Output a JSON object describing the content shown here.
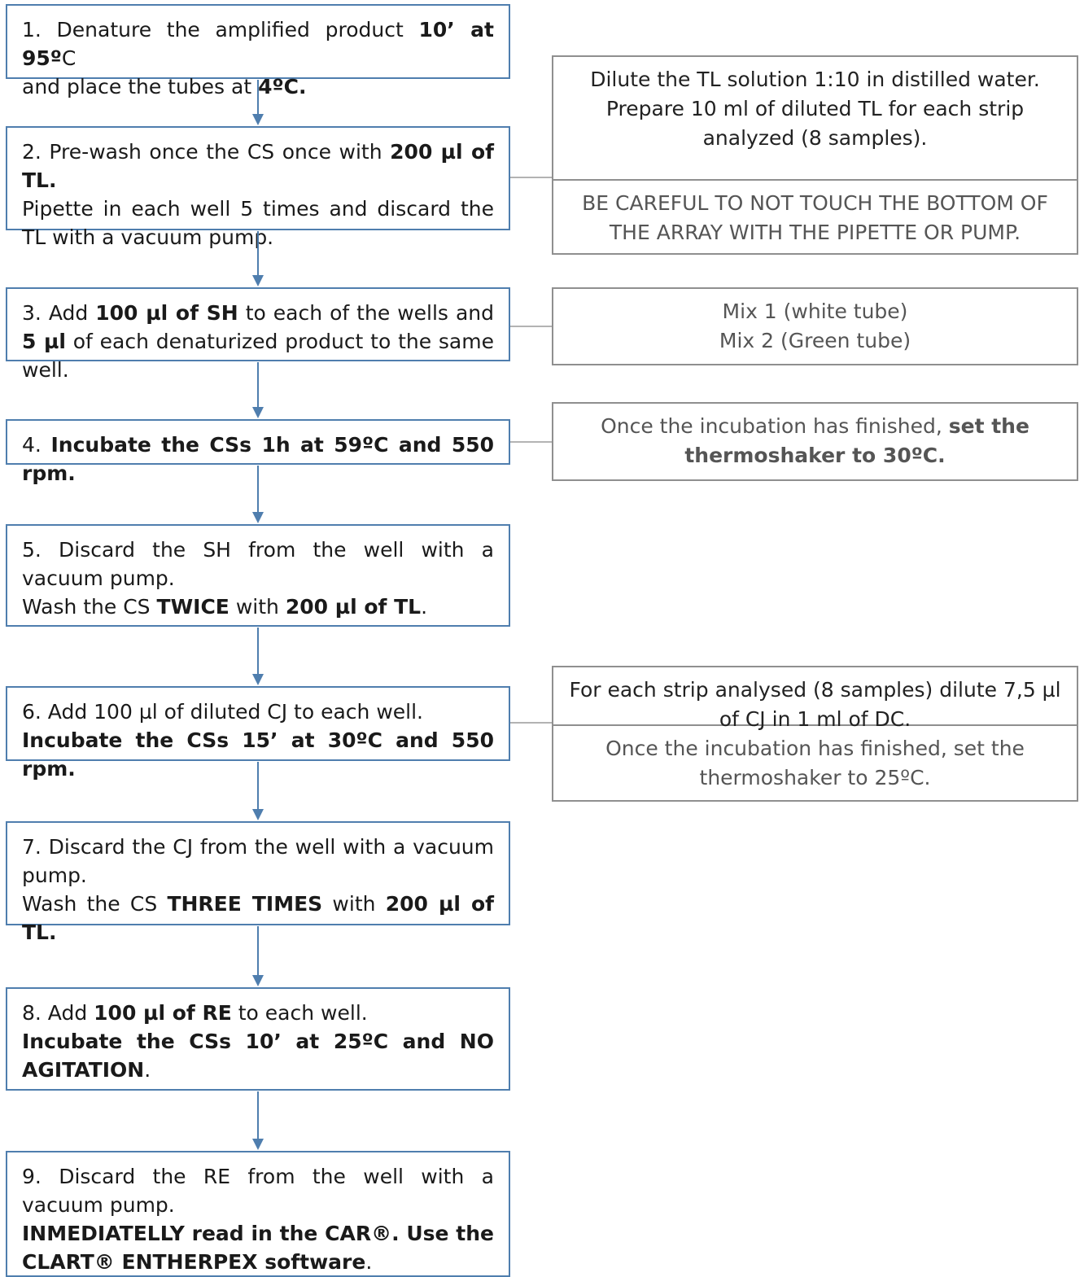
{
  "steps": [
    {
      "num": "1.",
      "parts": [
        {
          "t": " Denature the amplified product "
        },
        {
          "t": "10’ at 95º",
          "b": true
        },
        {
          "t": "C"
        },
        {
          "br": true
        },
        {
          "t": "and place the tubes at "
        },
        {
          "t": "4ºC.",
          "b": true
        }
      ]
    },
    {
      "num": "2.",
      "parts": [
        {
          "t": " Pre-wash once the CS once with "
        },
        {
          "t": "200 µl of TL.",
          "b": true
        },
        {
          "br": true
        },
        {
          "t": "Pipette in each well 5 times and discard the TL with a vacuum pump."
        }
      ]
    },
    {
      "num": "3.",
      "parts": [
        {
          "t": " Add "
        },
        {
          "t": "100 µl of SH",
          "b": true
        },
        {
          "t": " to each of the wells and "
        },
        {
          "t": "5 µl",
          "b": true
        },
        {
          "t": " of each denaturized product to the same well."
        }
      ]
    },
    {
      "num": "4.",
      "parts": [
        {
          "t": " "
        },
        {
          "t": "Incubate the CSs 1h at 59ºC and 550 rpm.",
          "b": true
        }
      ]
    },
    {
      "num": "5.",
      "parts": [
        {
          "t": " Discard the SH from the well with a vacuum pump."
        },
        {
          "br": true
        },
        {
          "t": "Wash the CS "
        },
        {
          "t": "TWICE",
          "b": true
        },
        {
          "t": " with "
        },
        {
          "t": "200 µl of TL",
          "b": true
        },
        {
          "t": "."
        }
      ]
    },
    {
      "num": "6.",
      "parts": [
        {
          "t": " Add 100 µl of diluted CJ to each well."
        },
        {
          "br": true
        },
        {
          "t": "Incubate the CSs 15’ at 30ºC and 550 rpm.",
          "b": true
        }
      ]
    },
    {
      "num": "7.",
      "parts": [
        {
          "t": " Discard the CJ from the well with a vacuum pump."
        },
        {
          "br": true
        },
        {
          "t": "Wash the CS "
        },
        {
          "t": "THREE TIMES",
          "b": true
        },
        {
          "t": " with "
        },
        {
          "t": "200 µl of TL.",
          "b": true
        }
      ]
    },
    {
      "num": "8.",
      "parts": [
        {
          "t": " Add "
        },
        {
          "t": "100 µl of RE",
          "b": true
        },
        {
          "t": " to each well."
        },
        {
          "br": true
        },
        {
          "t": "Incubate the CSs 10’ at 25ºC and NO AGITATION",
          "b": true
        },
        {
          "t": "."
        }
      ]
    },
    {
      "num": "9.",
      "parts": [
        {
          "t": " Discard the RE from the well with a vacuum pump."
        },
        {
          "br": true
        },
        {
          "t": "INMEDIATELLY read in the CAR®. Use the CLART® ENTHERPEX software",
          "b": true
        },
        {
          "t": "."
        }
      ]
    }
  ],
  "notes": [
    {
      "sections": [
        {
          "tone": "dark",
          "parts": [
            {
              "t": "Dilute the TL solution 1:10 in distilled water."
            },
            {
              "br": true
            },
            {
              "t": "Prepare 10 ml of diluted TL for each strip analyzed (8 samples)."
            }
          ]
        },
        {
          "tone": "grey",
          "parts": [
            {
              "t": "BE CAREFUL TO NOT TOUCH THE BOTTOM OF THE ARRAY WITH THE PIPETTE OR PUMP."
            }
          ]
        }
      ]
    },
    {
      "sections": [
        {
          "tone": "grey",
          "parts": [
            {
              "t": "Mix 1 (white tube)"
            },
            {
              "br": true
            },
            {
              "t": "Mix 2 (Green tube)"
            }
          ]
        }
      ]
    },
    {
      "sections": [
        {
          "tone": "grey",
          "parts": [
            {
              "t": "Once the incubation has finished, "
            },
            {
              "t": "set the thermoshaker to 30ºC.",
              "b": true
            }
          ]
        }
      ]
    },
    {
      "sections": [
        {
          "tone": "dark",
          "parts": [
            {
              "t": "For each strip analysed (8 samples) dilute 7,5 µl of CJ in 1 ml of DC."
            }
          ]
        },
        {
          "tone": "grey",
          "parts": [
            {
              "t": "Once the incubation has finished, set the thermoshaker to 25ºC."
            }
          ]
        }
      ]
    }
  ],
  "colors": {
    "step_border": "#4f7eae",
    "arrow": "#4f7eae",
    "note_border": "#8f8f8f",
    "connector": "#9a9a9a"
  }
}
